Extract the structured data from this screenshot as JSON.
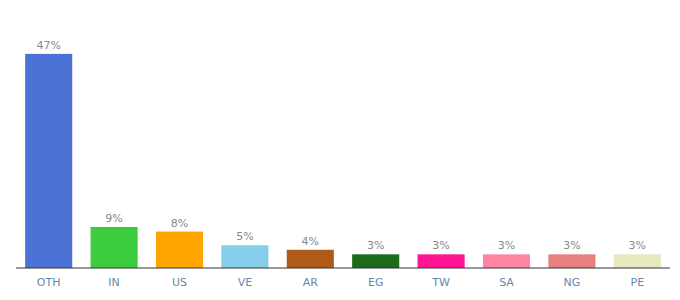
{
  "chart_data": {
    "type": "bar",
    "categories": [
      "OTH",
      "IN",
      "US",
      "VE",
      "AR",
      "EG",
      "TW",
      "SA",
      "NG",
      "PE"
    ],
    "values": [
      47,
      9,
      8,
      5,
      4,
      3,
      3,
      3,
      3,
      3
    ],
    "value_labels": [
      "47%",
      "9%",
      "8%",
      "5%",
      "4%",
      "3%",
      "3%",
      "3%",
      "3%",
      "3%"
    ],
    "colors": [
      "#4d72d6",
      "#3dcc3d",
      "#ffa500",
      "#87ceeb",
      "#b05a1a",
      "#1a6b1a",
      "#ff1493",
      "#ff85a5",
      "#e88080",
      "#e8e8c0"
    ],
    "ylim": [
      0,
      54
    ],
    "data_labels": true,
    "tick_labels": "x",
    "grid": false
  }
}
